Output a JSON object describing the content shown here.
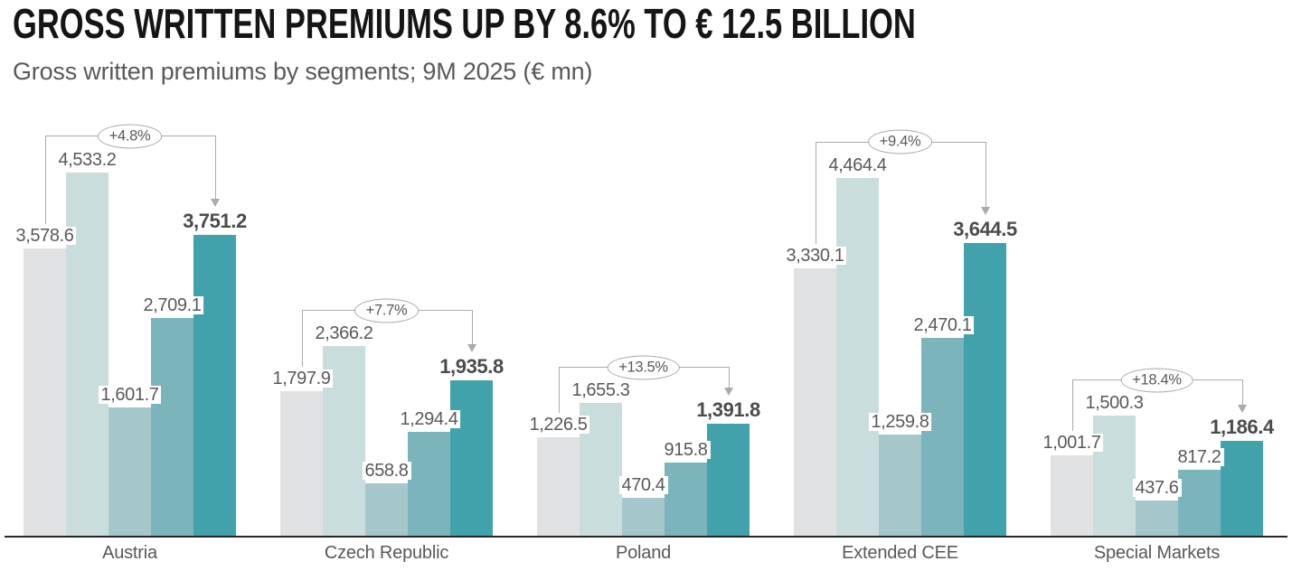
{
  "header": {
    "title": "GROSS WRITTEN PREMIUMS UP BY 8.6% TO € 12.5 BILLION",
    "subtitle": "Gross written premiums by segments; 9M 2025 (€ mn)"
  },
  "chart_data": {
    "type": "bar",
    "title": "GROSS WRITTEN PREMIUMS UP BY 8.6% TO € 12.5 BILLION",
    "subtitle": "Gross written premiums by segments; 9M 2025 (€ mn)",
    "unit": "€ mn",
    "legend": "none",
    "grid": false,
    "bars_per_group": 5,
    "bar_colors": [
      "#dfe1e3",
      "#c9dedc",
      "#a5c7cc",
      "#7bb4ba",
      "#42a2ab"
    ],
    "bracket_line_color": "#ababab",
    "badge_border_color": "#a9a9a9",
    "axis_line_color": "#262626",
    "label_color": "#595959",
    "final_label_color": "#4b4b4b",
    "groups": [
      {
        "label": "Austria",
        "change": "+4.8%",
        "values": [
          3578.6,
          4533.2,
          1601.7,
          2709.1,
          3751.2
        ],
        "value_labels": [
          "3,578.6",
          "4,533.2",
          "1,601.7",
          "2,709.1",
          "3,751.2"
        ]
      },
      {
        "label": "Czech Republic",
        "change": "+7.7%",
        "values": [
          1797.9,
          2366.2,
          658.8,
          1294.4,
          1935.8
        ],
        "value_labels": [
          "1,797.9",
          "2,366.2",
          "658.8",
          "1,294.4",
          "1,935.8"
        ]
      },
      {
        "label": "Poland",
        "change": "+13.5%",
        "values": [
          1226.5,
          1655.3,
          470.4,
          915.8,
          1391.8
        ],
        "value_labels": [
          "1,226.5",
          "1,655.3",
          "470.4",
          "915.8",
          "1,391.8"
        ]
      },
      {
        "label": "Extended CEE",
        "change": "+9.4%",
        "values": [
          3330.1,
          4464.4,
          1259.8,
          2470.1,
          3644.5
        ],
        "value_labels": [
          "3,330.1",
          "4,464.4",
          "1,259.8",
          "2,470.1",
          "3,644.5"
        ]
      },
      {
        "label": "Special Markets",
        "change": "+18.4%",
        "values": [
          1001.7,
          1500.3,
          437.6,
          817.2,
          1186.4
        ],
        "value_labels": [
          "1,001.7",
          "1,500.3",
          "437.6",
          "817.2",
          "1,186.4"
        ]
      }
    ]
  }
}
